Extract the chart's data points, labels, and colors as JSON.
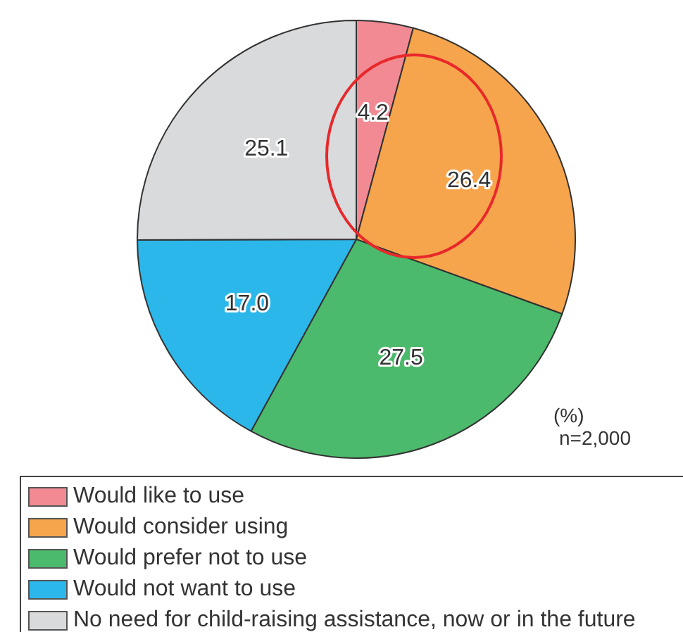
{
  "chart_data": {
    "type": "pie",
    "categories": [
      "Would like to use",
      "Would consider using",
      "Would prefer not to use",
      "Would not want to use",
      "No need for child-raising assistance, now or in the future"
    ],
    "values": [
      4.2,
      26.4,
      27.5,
      17.0,
      25.1
    ],
    "colors": [
      "#f28a93",
      "#f6a54c",
      "#4cba6c",
      "#2bb7ea",
      "#d9dadc"
    ],
    "value_labels": [
      "4.2",
      "26.4",
      "27.5",
      "17.0",
      "25.1"
    ],
    "legend": "bottom",
    "annotations": [
      "(%)",
      "n=2,000"
    ]
  }
}
